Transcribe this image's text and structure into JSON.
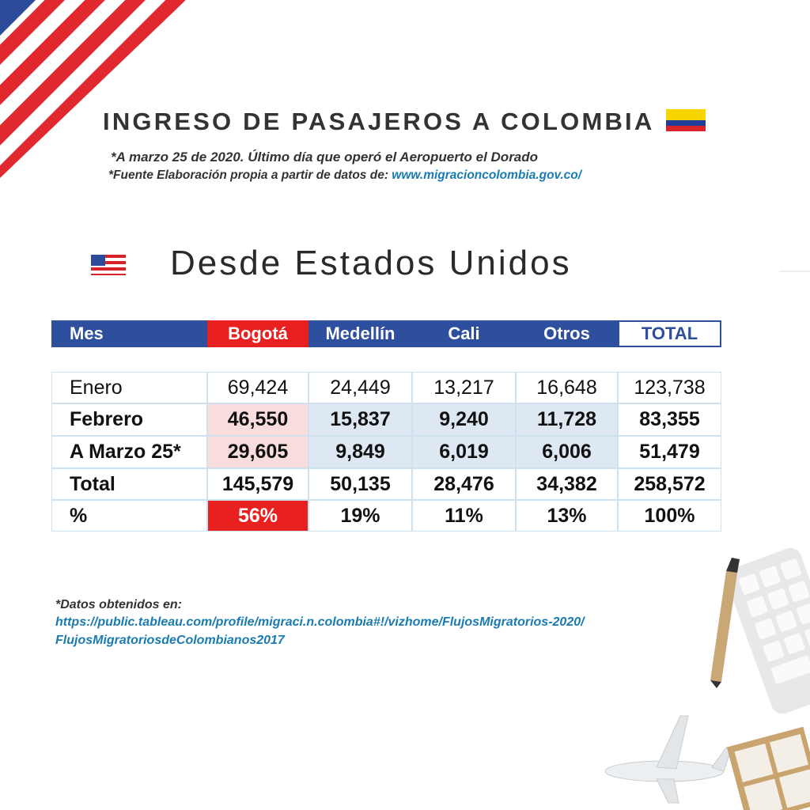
{
  "header": {
    "title": "INGRESO DE PASAJEROS A COLOMBIA",
    "note1": "*A marzo 25 de 2020. Último día que operó el Aeropuerto el Dorado",
    "note2": "*Fuente Elaboración propia a partir de datos de:",
    "note2_link": "www.migracioncolombia.gov.co/"
  },
  "section_title": "Desde Estados Unidos",
  "table": {
    "headers": [
      "Mes",
      "Bogotá",
      "Medellín",
      "Cali",
      "Otros",
      "TOTAL"
    ],
    "rows": [
      [
        "Enero",
        "69,424",
        "24,449",
        "13,217",
        "16,648",
        "123,738"
      ],
      [
        "Febrero",
        "46,550",
        "15,837",
        "9,240",
        "11,728",
        "83,355"
      ],
      [
        "A Marzo 25*",
        "29,605",
        "9,849",
        "6,019",
        "6,006",
        "51,479"
      ],
      [
        "Total",
        "145,579",
        "50,135",
        "28,476",
        "34,382",
        "258,572"
      ],
      [
        "%",
        "56%",
        "19%",
        "11%",
        "13%",
        "100%"
      ]
    ]
  },
  "footer": {
    "label": "*Datos  obtenidos en:",
    "link_line1": "https://public.tableau.com/profile/migraci.n.colombia#!/vizhome/FlujosMigratorios-2020/",
    "link_line2": "FlujosMigratoriosdeColombianos2017"
  }
}
